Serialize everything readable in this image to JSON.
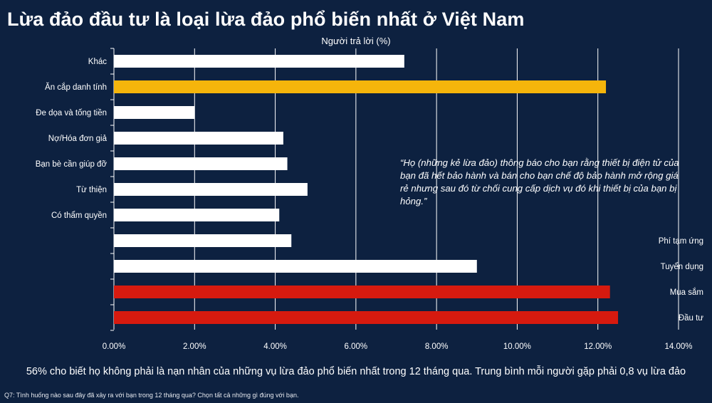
{
  "page": {
    "title": "Lừa đảo đầu tư là loại lừa đảo phổ biến nhất ở Việt Nam",
    "quote": "“Họ (những kẻ lừa đảo) thông báo cho bạn rằng thiết bị điện  tử của bạn đã hết bảo hành và bán cho bạn chế độ bảo hành  mở rộng giá rẻ nhưng sau đó từ chối cung cấp dịch vụ đó khi thiết bị của bạn bị hỏng.”",
    "summary": "56% cho biết họ không phải là nạn nhân của những vụ lừa đảo phổ biến nhất trong 12 tháng qua. Trung bình mỗi người gặp phải 0,8 vụ lừa  đảo",
    "footnote": "Q7: Tình huống nào sau đây đã xảy ra với bạn trong 12 tháng qua? Chọn tất cả những gì đúng với bạn."
  },
  "chart_data": {
    "type": "bar",
    "orientation": "horizontal",
    "title": "Lừa đảo đầu tư là loại lừa đảo phổ biến nhất ở Việt Nam",
    "xlabel": "Người trả lời (%)",
    "xlim": [
      0,
      14
    ],
    "xticks": [
      "0.00%",
      "2.00%",
      "4.00%",
      "6.00%",
      "8.00%",
      "10.00%",
      "12.00%",
      "14.00%"
    ],
    "grid": true,
    "categories": [
      {
        "label": "Khác",
        "label_side": "left",
        "value": 7.2,
        "color": "#ffffff"
      },
      {
        "label": "Ăn cắp danh tính",
        "label_side": "left",
        "value": 12.2,
        "color": "#f5b50b"
      },
      {
        "label": "Đe dọa và tống tiền",
        "label_side": "left",
        "value": 2.0,
        "color": "#ffffff"
      },
      {
        "label": "Nợ/Hóa đơn giả",
        "label_side": "left",
        "value": 4.2,
        "color": "#ffffff"
      },
      {
        "label": "Bạn bè cần giúp đỡ",
        "label_side": "left",
        "value": 4.3,
        "color": "#ffffff"
      },
      {
        "label": "Từ thiện",
        "label_side": "left",
        "value": 4.8,
        "color": "#ffffff"
      },
      {
        "label": "Có thẩm quyền",
        "label_side": "left",
        "value": 4.1,
        "color": "#ffffff"
      },
      {
        "label": "Phí tạm ứng",
        "label_side": "right",
        "value": 4.4,
        "color": "#ffffff"
      },
      {
        "label": "Tuyển dụng",
        "label_side": "right",
        "value": 9.0,
        "color": "#ffffff"
      },
      {
        "label": "Mua sắm",
        "label_side": "right",
        "value": 12.3,
        "color": "#d61a0f"
      },
      {
        "label": "Đầu tư",
        "label_side": "right",
        "value": 12.5,
        "color": "#d61a0f"
      }
    ]
  }
}
